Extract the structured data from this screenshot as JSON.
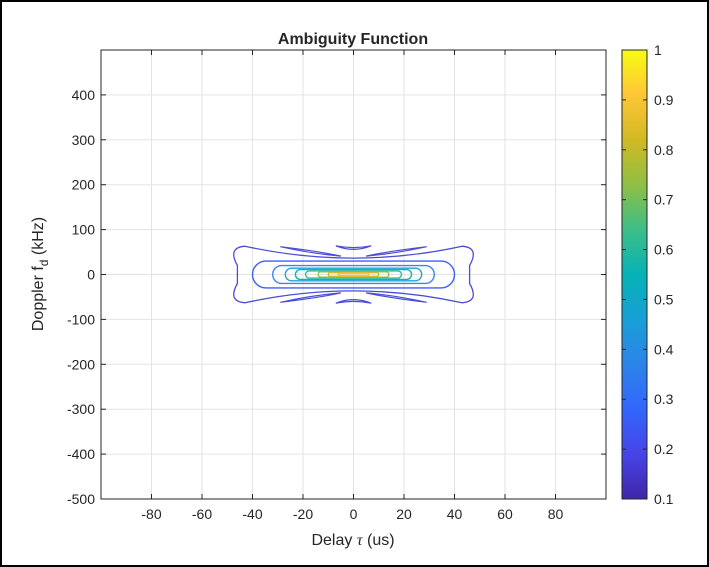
{
  "figure": {
    "title": "Ambiguity Function",
    "xlabel_prefix": "Delay ",
    "xlabel_symbol": "τ",
    "xlabel_suffix": " (us)",
    "ylabel_prefix": "Doppler f",
    "ylabel_subscript": "d",
    "ylabel_suffix": " (kHz)"
  },
  "chart_data": {
    "type": "contour",
    "title": "Ambiguity Function",
    "xlabel": "Delay τ (us)",
    "ylabel": "Doppler f_d (kHz)",
    "xlim": [
      -100,
      100
    ],
    "ylim": [
      -500,
      500
    ],
    "xticks": [
      -80,
      -60,
      -40,
      -20,
      0,
      20,
      40,
      60,
      80
    ],
    "yticks": [
      -500,
      -400,
      -300,
      -200,
      -100,
      0,
      100,
      200,
      300,
      400
    ],
    "grid": true,
    "colormap": "parula",
    "colorbar": {
      "range": [
        0.1,
        1
      ],
      "ticks": [
        0.1,
        0.2,
        0.3,
        0.4,
        0.5,
        0.6,
        0.7,
        0.8,
        0.9,
        1
      ],
      "colors": [
        "#3e26a8",
        "#4744e8",
        "#3366fc",
        "#2c84e9",
        "#189fd6",
        "#06b2b6",
        "#3cbe87",
        "#8fbf45",
        "#d2b923",
        "#fec636",
        "#f9fb15"
      ]
    },
    "contours": [
      {
        "level": 0.1,
        "description": "outer bow-tie lobe",
        "color": "#4d4cd6",
        "delay_extent": [
          -45,
          45
        ],
        "doppler_extent": [
          -63,
          63
        ]
      },
      {
        "level": 0.1,
        "description": "upper side lobes (delay)",
        "color": "#4d4cd6",
        "points": [
          [
            -28,
            60
          ],
          [
            28,
            60
          ],
          [
            -12,
            46
          ],
          [
            12,
            46
          ]
        ]
      },
      {
        "level": 0.1,
        "description": "lower side lobes (delay)",
        "color": "#4d4cd6",
        "points": [
          [
            -28,
            -60
          ],
          [
            28,
            -60
          ],
          [
            -12,
            -46
          ],
          [
            12,
            -46
          ]
        ]
      },
      {
        "level": 0.1,
        "description": "upper/lower center chevrons",
        "color": "#4d4cd6",
        "points": [
          [
            0,
            55
          ],
          [
            0,
            -55
          ]
        ]
      },
      {
        "level": 0.2,
        "description": "contour",
        "color": "#3d5ef6",
        "delay_extent": [
          -40,
          40
        ],
        "doppler_extent": [
          -30,
          30
        ]
      },
      {
        "level": 0.3,
        "description": "contour",
        "color": "#3c86f0",
        "delay_extent": [
          -32,
          32
        ],
        "doppler_extent": [
          -20,
          20
        ]
      },
      {
        "level": 0.4,
        "description": "contour",
        "color": "#22a4d6",
        "delay_extent": [
          -27,
          27
        ],
        "doppler_extent": [
          -14,
          14
        ]
      },
      {
        "level": 0.5,
        "description": "contour",
        "color": "#08b6b6",
        "delay_extent": [
          -23,
          23
        ],
        "doppler_extent": [
          -11,
          11
        ]
      },
      {
        "level": 0.6,
        "description": "contour",
        "color": "#31be93",
        "delay_extent": [
          -19,
          19
        ],
        "doppler_extent": [
          -8,
          8
        ]
      },
      {
        "level": 0.7,
        "description": "contour",
        "color": "#8cbf49",
        "delay_extent": [
          -14,
          14
        ],
        "doppler_extent": [
          -6,
          6
        ]
      },
      {
        "level": 0.8,
        "description": "contour",
        "color": "#d8b928",
        "delay_extent": [
          -10,
          10
        ],
        "doppler_extent": [
          -4,
          4
        ]
      },
      {
        "level": 0.9,
        "description": "contour",
        "color": "#f6c23a",
        "delay_extent": [
          -6,
          6
        ],
        "doppler_extent": [
          -2.5,
          2.5
        ]
      }
    ]
  }
}
